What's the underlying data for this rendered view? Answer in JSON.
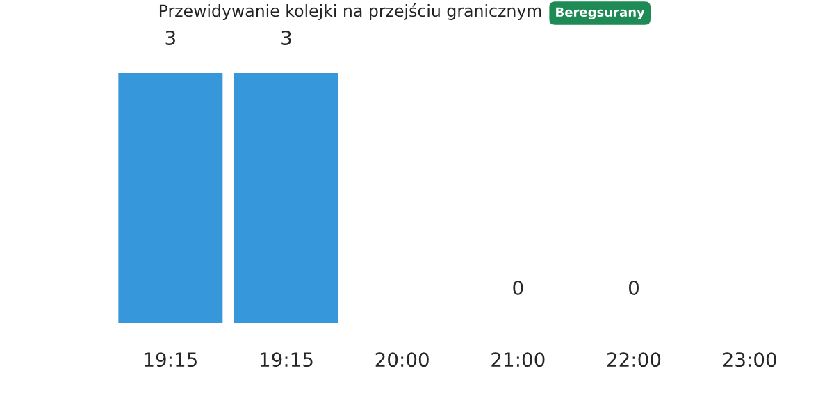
{
  "chart_data": {
    "type": "bar",
    "title": "Przewidywanie kolejki na przejściu granicznym",
    "subtitle": "Beregsurany",
    "categories": [
      "19:15",
      "19:15",
      "20:00",
      "21:00",
      "22:00",
      "23:00"
    ],
    "values": [
      3,
      3,
      null,
      0,
      0,
      null
    ],
    "color": "#3698db",
    "data_labels": true,
    "grid": false,
    "legend": false
  }
}
